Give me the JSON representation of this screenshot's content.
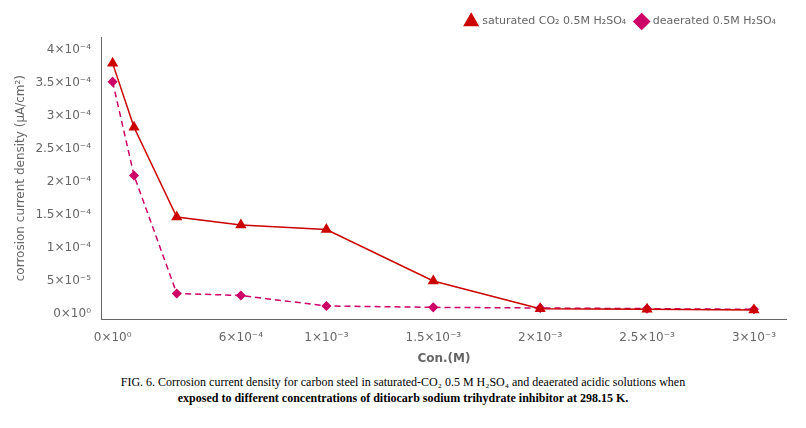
{
  "chart_data": {
    "type": "line",
    "x_label": "Con.(M)",
    "y_label": "corrosion current density (μA/cm²)",
    "x": [
      0.0,
      0.0001,
      0.0003,
      0.0006,
      0.001,
      0.0015,
      0.002,
      0.0025,
      0.003
    ],
    "series": [
      {
        "name": "saturated CO₂ 0.5M H₂SO₄",
        "color": "#cc0000",
        "marker": "triangle",
        "line_style": "solid",
        "values": [
          0.00038,
          0.000283,
          0.000147,
          0.000135,
          0.000128,
          5e-05,
          8e-06,
          7e-06,
          6e-06
        ]
      },
      {
        "name": "deaerated 0.5M H₂SO₄",
        "color": "#cc0066",
        "marker": "diamond",
        "line_style": "dashed",
        "values": [
          0.000352,
          0.00021,
          3.1e-05,
          2.8e-05,
          1.2e-05,
          1e-05,
          9e-06,
          8e-06,
          7e-06
        ]
      }
    ],
    "xlim": [
      -5e-05,
      0.00315
    ],
    "ylim": [
      -8e-06,
      0.00042
    ],
    "xticks": [
      {
        "value": 0,
        "label": "0×10⁰"
      },
      {
        "value": 0.0006,
        "label": "6×10⁻⁴"
      },
      {
        "value": 0.001,
        "label": "1×10⁻³"
      },
      {
        "value": 0.0015,
        "label": "1.5×10⁻³"
      },
      {
        "value": 0.002,
        "label": "2×10⁻³"
      },
      {
        "value": 0.0025,
        "label": "2.5×10⁻³"
      },
      {
        "value": 0.003,
        "label": "3×10⁻³"
      }
    ],
    "yticks": [
      {
        "value": 0,
        "label": "0×10⁰"
      },
      {
        "value": 5e-05,
        "label": "5×10⁻⁵"
      },
      {
        "value": 0.0001,
        "label": "1×10⁻⁴"
      },
      {
        "value": 0.00015,
        "label": "1.5×10⁻⁴"
      },
      {
        "value": 0.0002,
        "label": "2×10⁻⁴"
      },
      {
        "value": 0.00025,
        "label": "2.5×10⁻⁴"
      },
      {
        "value": 0.0003,
        "label": "3×10⁻⁴"
      },
      {
        "value": 0.00035,
        "label": "3.5×10⁻⁴"
      },
      {
        "value": 0.0004,
        "label": "4×10⁻⁴"
      }
    ],
    "grid": false,
    "legend": "upper right",
    "annotations": [
      "FIG. 6. Corrosion current density for carbon steel in saturated-CO₂ 0.5 M H₂SO₄ and deaerated acidic solutions when",
      "exposed to different concentrations of ditiocarb sodium trihydrate inhibitor at 298.15 K."
    ]
  }
}
